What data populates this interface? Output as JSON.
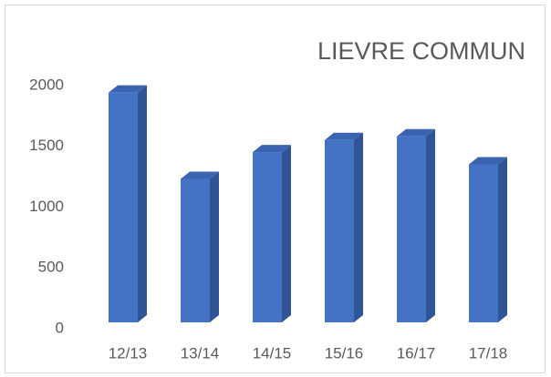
{
  "chart_data": {
    "type": "bar3d",
    "title": "LIEVRE COMMUN",
    "categories": [
      "12/13",
      "13/14",
      "14/15",
      "15/16",
      "16/17",
      "17/18"
    ],
    "values": [
      1950,
      1240,
      1460,
      1560,
      1590,
      1360
    ],
    "color": "#4472c4",
    "ylim": [
      0,
      2000
    ],
    "yticks": [
      0,
      500,
      1000,
      1500,
      2000
    ],
    "grid": false
  }
}
